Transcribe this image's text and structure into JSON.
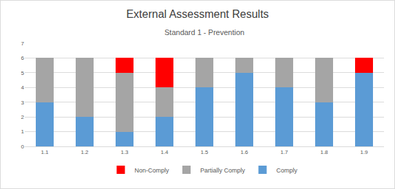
{
  "chart_data": {
    "type": "bar",
    "title": "External Assessment Results",
    "subtitle": "Standard 1 - Prevention",
    "categories": [
      "1.1",
      "1.2",
      "1.3",
      "1.4",
      "1.5",
      "1.6",
      "1.7",
      "1.8",
      "1.9"
    ],
    "series": [
      {
        "name": "Comply",
        "color": "#5b9bd5",
        "values": [
          3,
          2,
          1,
          2,
          4,
          5,
          4,
          3,
          5
        ]
      },
      {
        "name": "Partially Comply",
        "color": "#a5a5a5",
        "values": [
          3,
          4,
          4,
          2,
          2,
          1,
          2,
          3,
          0
        ]
      },
      {
        "name": "Non-Comply",
        "color": "#ff0000",
        "values": [
          0,
          0,
          1,
          2,
          0,
          0,
          0,
          0,
          1
        ]
      }
    ],
    "ylim": [
      0,
      7
    ],
    "yticks": [
      0,
      1,
      2,
      3,
      4,
      5,
      6,
      7
    ],
    "stacked": true,
    "grid": true,
    "legend": "bottom"
  }
}
